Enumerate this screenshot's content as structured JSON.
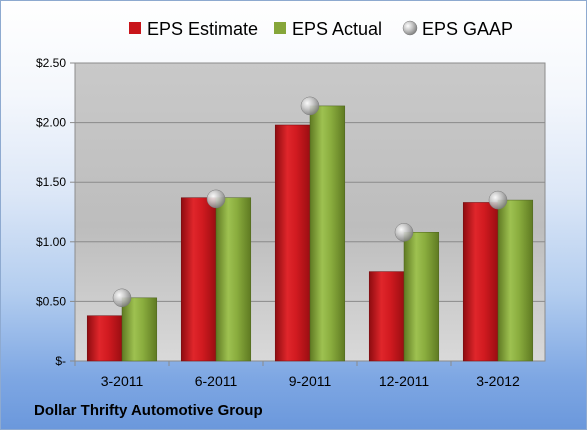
{
  "chart_data": {
    "type": "bar",
    "categories": [
      "3-2011",
      "6-2011",
      "9-2011",
      "12-2011",
      "3-2012"
    ],
    "series": [
      {
        "name": "EPS Estimate",
        "values": [
          0.38,
          1.37,
          1.98,
          0.75,
          1.33
        ],
        "color": "#c8141a",
        "kind": "bar"
      },
      {
        "name": "EPS Actual",
        "values": [
          0.53,
          1.37,
          2.14,
          1.08,
          1.35
        ],
        "color": "#86a63a",
        "kind": "bar"
      },
      {
        "name": "EPS GAAP",
        "values": [
          0.53,
          1.36,
          2.14,
          1.08,
          1.35
        ],
        "color": "#b9b9b9",
        "kind": "marker"
      }
    ],
    "yticks": [
      "$-",
      "$0.50",
      "$1.00",
      "$1.50",
      "$2.00",
      "$2.50"
    ],
    "ylim": [
      0,
      2.5
    ],
    "grid": true,
    "legend": "top"
  },
  "footer": {
    "company": "Dollar Thrifty Automotive Group"
  }
}
